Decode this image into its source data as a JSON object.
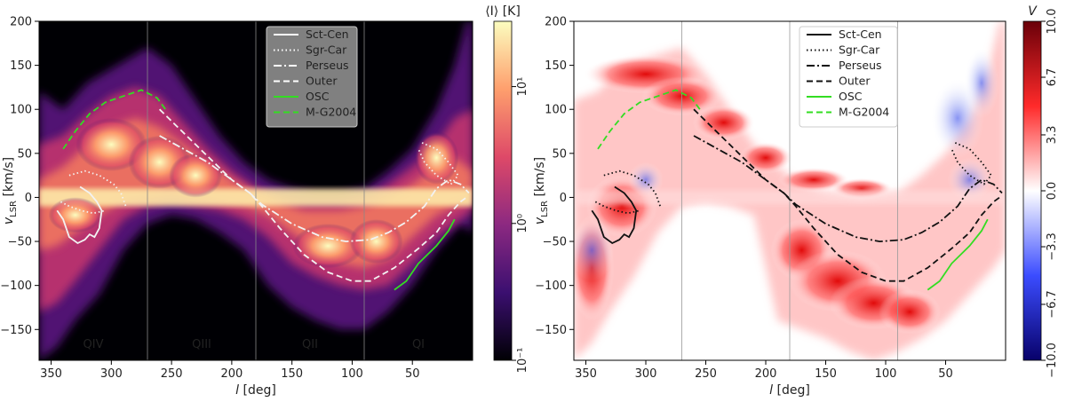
{
  "chart_data": [
    {
      "type": "heatmap",
      "panel": "left",
      "title": "",
      "xlabel_var": "l",
      "xlabel_unit": "[deg]",
      "ylabel_var": "v",
      "ylabel_sub": "LSR",
      "ylabel_unit": "[km/s]",
      "xlim": [
        360,
        0
      ],
      "ylim": [
        -185,
        200
      ],
      "xticks": [
        350,
        300,
        250,
        200,
        150,
        100,
        50
      ],
      "yticks": [
        -150,
        -100,
        -50,
        0,
        50,
        100,
        150,
        200
      ],
      "quadrant_lines": [
        270,
        180,
        90
      ],
      "quadrant_labels": [
        {
          "label": "QIV",
          "l": 315
        },
        {
          "label": "QIII",
          "l": 225
        },
        {
          "label": "QII",
          "l": 135
        },
        {
          "label": "QI",
          "l": 45
        }
      ],
      "colorbar": {
        "label": "⟨I⟩ [K]",
        "scale": "log",
        "range": [
          0.1,
          30
        ],
        "ticks": [
          {
            "value": 10,
            "label": "10¹"
          },
          {
            "value": 1,
            "label": "10⁰"
          },
          {
            "value": 0.1,
            "label": "10⁻¹"
          }
        ],
        "colors": [
          "#000004",
          "#3b0f70",
          "#8c2981",
          "#de4968",
          "#fe9f6d",
          "#fcfdbf"
        ]
      },
      "legend": [
        {
          "name": "Sct-Cen",
          "style": "solid",
          "color": "#ffffff"
        },
        {
          "name": "Sgr-Car",
          "style": "dotted",
          "color": "#ffffff"
        },
        {
          "name": "Perseus",
          "style": "dashdot",
          "color": "#ffffff"
        },
        {
          "name": "Outer",
          "style": "dashed",
          "color": "#ffffff"
        },
        {
          "name": "OSC",
          "style": "solid",
          "color": "#33dd22"
        },
        {
          "name": "M-G2004",
          "style": "dashed",
          "color": "#33dd22"
        }
      ]
    },
    {
      "type": "heatmap",
      "panel": "right",
      "title": "",
      "xlabel_var": "l",
      "xlabel_unit": "[deg]",
      "ylabel_var": "v",
      "ylabel_sub": "LSR",
      "ylabel_unit": "[km/s]",
      "xlim": [
        360,
        0
      ],
      "ylim": [
        -185,
        200
      ],
      "xticks": [
        350,
        300,
        250,
        200,
        150,
        100,
        50
      ],
      "yticks": [
        -150,
        -100,
        -50,
        0,
        50,
        100,
        150,
        200
      ],
      "quadrant_lines": [
        270,
        180,
        90
      ],
      "colorbar": {
        "label": "V",
        "scale": "linear",
        "range": [
          -10,
          10
        ],
        "ticks": [
          {
            "value": 10,
            "label": "10.0"
          },
          {
            "value": 6.7,
            "label": "6.7"
          },
          {
            "value": 3.3,
            "label": "3.3"
          },
          {
            "value": 0,
            "label": "0.0"
          },
          {
            "value": -3.3,
            "label": "−3.3"
          },
          {
            "value": -6.7,
            "label": "−6.7"
          },
          {
            "value": -10,
            "label": "−10.0"
          }
        ],
        "colors": [
          "#08016a",
          "#3b4cff",
          "#ffffff",
          "#ff2a2a",
          "#6a0009"
        ]
      },
      "legend": [
        {
          "name": "Sct-Cen",
          "style": "solid",
          "color": "#111111"
        },
        {
          "name": "Sgr-Car",
          "style": "dotted",
          "color": "#111111"
        },
        {
          "name": "Perseus",
          "style": "dashdot",
          "color": "#111111"
        },
        {
          "name": "Outer",
          "style": "dashed",
          "color": "#111111"
        },
        {
          "name": "OSC",
          "style": "solid",
          "color": "#33dd22"
        },
        {
          "name": "M-G2004",
          "style": "dashed",
          "color": "#33dd22"
        }
      ]
    }
  ],
  "curves": {
    "sct_cen": [
      [
        345,
        -15
      ],
      [
        340,
        -25
      ],
      [
        335,
        -45
      ],
      [
        328,
        -52
      ],
      [
        322,
        -48
      ],
      [
        318,
        -42
      ],
      [
        314,
        -45
      ],
      [
        310,
        -35
      ],
      [
        308,
        -15
      ],
      [
        312,
        -5
      ],
      [
        318,
        5
      ],
      [
        326,
        12
      ]
    ],
    "sgr_car_a": [
      [
        342,
        -5
      ],
      [
        335,
        -10
      ],
      [
        325,
        -15
      ],
      [
        315,
        -18
      ],
      [
        305,
        -15
      ]
    ],
    "sgr_car_b": [
      [
        335,
        25
      ],
      [
        322,
        30
      ],
      [
        310,
        25
      ],
      [
        298,
        15
      ],
      [
        292,
        5
      ],
      [
        288,
        -10
      ]
    ],
    "outer": [
      [
        260,
        100
      ],
      [
        245,
        80
      ],
      [
        230,
        60
      ],
      [
        215,
        40
      ],
      [
        200,
        20
      ],
      [
        185,
        5
      ],
      [
        175,
        -10
      ],
      [
        160,
        -35
      ],
      [
        140,
        -65
      ],
      [
        120,
        -85
      ],
      [
        100,
        -95
      ],
      [
        85,
        -95
      ],
      [
        65,
        -80
      ],
      [
        45,
        -58
      ],
      [
        30,
        -40
      ],
      [
        20,
        -20
      ],
      [
        10,
        -5
      ],
      [
        5,
        0
      ]
    ],
    "perseus": [
      [
        260,
        70
      ],
      [
        240,
        55
      ],
      [
        220,
        40
      ],
      [
        200,
        20
      ],
      [
        185,
        5
      ],
      [
        175,
        -8
      ],
      [
        150,
        -30
      ],
      [
        125,
        -45
      ],
      [
        105,
        -50
      ],
      [
        85,
        -48
      ],
      [
        70,
        -40
      ],
      [
        55,
        -28
      ],
      [
        40,
        -10
      ],
      [
        30,
        10
      ],
      [
        20,
        20
      ],
      [
        10,
        15
      ],
      [
        3,
        5
      ]
    ],
    "osc": [
      [
        65,
        -105
      ],
      [
        55,
        -95
      ],
      [
        45,
        -75
      ],
      [
        30,
        -55
      ],
      [
        20,
        -38
      ],
      [
        15,
        -25
      ]
    ],
    "mg2004": [
      [
        340,
        55
      ],
      [
        330,
        75
      ],
      [
        318,
        95
      ],
      [
        305,
        108
      ],
      [
        290,
        115
      ],
      [
        275,
        122
      ],
      [
        262,
        113
      ],
      [
        255,
        100
      ]
    ],
    "right_dotted_loop": [
      [
        42,
        62
      ],
      [
        30,
        55
      ],
      [
        20,
        40
      ],
      [
        12,
        25
      ],
      [
        18,
        15
      ],
      [
        30,
        25
      ],
      [
        40,
        40
      ],
      [
        45,
        55
      ]
    ]
  }
}
